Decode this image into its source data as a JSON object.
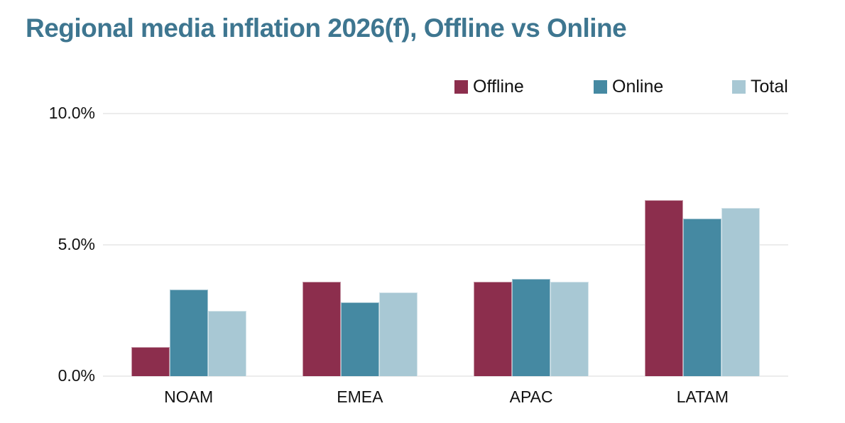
{
  "colors": {
    "title": "#3e7690",
    "grid": "#ececec",
    "axis_text": "#111111",
    "bar_border": "rgba(255,255,255,0.5)"
  },
  "chart_data": {
    "type": "bar",
    "title": "Regional media inflation 2026(f), Offline vs Online",
    "categories": [
      "NOAM",
      "EMEA",
      "APAC",
      "LATAM"
    ],
    "series": [
      {
        "name": "Offline",
        "color": "#8c2e4d",
        "values": [
          1.1,
          3.6,
          3.6,
          6.7
        ]
      },
      {
        "name": "Online",
        "color": "#4589a2",
        "values": [
          3.3,
          2.8,
          3.7,
          6.0
        ]
      },
      {
        "name": "Total",
        "color": "#a8c8d4",
        "values": [
          2.5,
          3.2,
          3.6,
          6.4
        ]
      }
    ],
    "xlabel": "",
    "ylabel": "",
    "unit": "%",
    "y_ticks": [
      {
        "label": "0.0%",
        "value": 0
      },
      {
        "label": "5.0%",
        "value": 5
      },
      {
        "label": "10.0%",
        "value": 10
      }
    ],
    "ylim": [
      0,
      10
    ],
    "grid": true,
    "legend_position": "top-right"
  }
}
